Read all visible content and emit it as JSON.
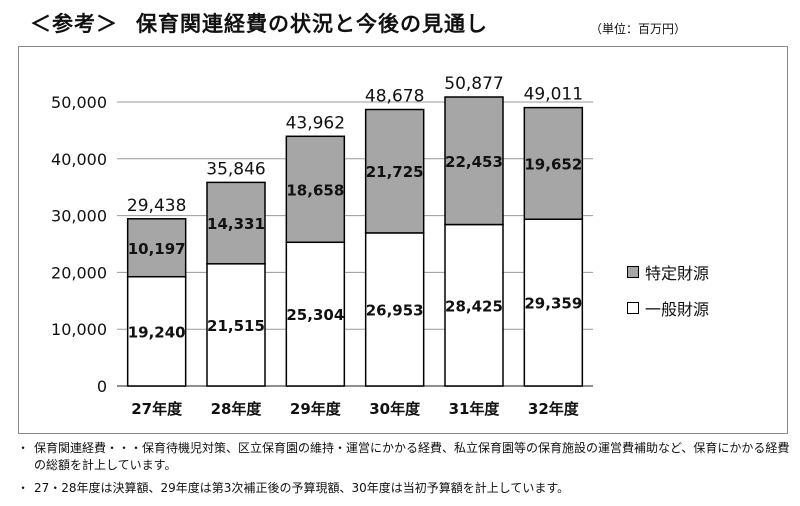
{
  "header": {
    "tag": "＜参考＞",
    "title": "保育関連経費の状況と今後の見通し",
    "unit": "（単位：百万円）"
  },
  "chart_data": {
    "type": "bar",
    "stacked": true,
    "categories": [
      "27年度",
      "28年度",
      "29年度",
      "30年度",
      "31年度",
      "32年度"
    ],
    "series": [
      {
        "name": "一般財源",
        "color": "#ffffff",
        "values": [
          19240,
          21515,
          25304,
          26953,
          28425,
          29359
        ]
      },
      {
        "name": "特定財源",
        "color": "#a6a6a6",
        "values": [
          10197,
          14331,
          18658,
          21725,
          22453,
          19652
        ]
      }
    ],
    "totals": [
      29438,
      35846,
      43962,
      48678,
      50877,
      49011
    ],
    "ylim": [
      0,
      50000
    ],
    "yticks": [
      0,
      10000,
      20000,
      30000,
      40000,
      50000
    ],
    "grid": true,
    "legend_position": "right",
    "title": "",
    "xlabel": "",
    "ylabel": ""
  },
  "legend": {
    "items": [
      {
        "label": "特定財源",
        "color": "#a6a6a6"
      },
      {
        "label": "一般財源",
        "color": "#ffffff"
      }
    ]
  },
  "notes": [
    {
      "bullet": "・",
      "text": "保育関連経費・・・保育待機児対策、区立保育園の維持・運営にかかる経費、私立保育園等の保育施設の運営費補助など、保育にかかる経費の総額を計上しています。"
    },
    {
      "bullet": "・",
      "text": "27・28年度は決算額、29年度は第3次補正後の予算現額、30年度は当初予算額を計上しています。"
    }
  ]
}
